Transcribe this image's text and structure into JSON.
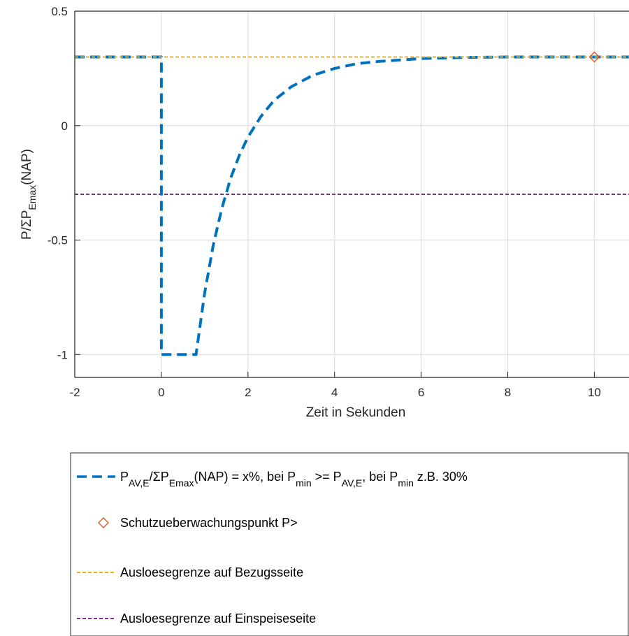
{
  "chart_data": {
    "type": "line",
    "xlabel": "Zeit in Sekunden",
    "ylabel_parts": [
      "P/ΣP",
      "Emax",
      "(NAP)"
    ],
    "xlim": [
      -2,
      10.8
    ],
    "ylim": [
      -1.1,
      0.5
    ],
    "x_ticks": [
      -2,
      0,
      2,
      4,
      6,
      8,
      10
    ],
    "y_ticks": [
      0.5,
      0,
      -0.5,
      -1
    ],
    "x_tick_labels": [
      "-2",
      "0",
      "2",
      "4",
      "6",
      "8",
      "10"
    ],
    "y_tick_labels": [
      "0.5",
      "0",
      "-0.5",
      "-1"
    ],
    "grid": true,
    "legend_placement": "below",
    "series": [
      {
        "style": "dashed",
        "color": "#0072BD",
        "x": [
          -2,
          0,
          0,
          0.8,
          1.0,
          1.2,
          1.4,
          1.6,
          1.8,
          2.0,
          2.3,
          2.6,
          3.0,
          3.5,
          4.0,
          4.5,
          5.0,
          6.0,
          7.0,
          8.0,
          9.0,
          10.0,
          10.8
        ],
        "y": [
          0.3,
          0.3,
          -1.0,
          -1.0,
          -0.73,
          -0.52,
          -0.36,
          -0.23,
          -0.13,
          -0.05,
          0.04,
          0.11,
          0.17,
          0.22,
          0.25,
          0.27,
          0.28,
          0.293,
          0.298,
          0.3,
          0.3,
          0.3,
          0.3
        ]
      },
      {
        "style": "marker",
        "color": "#D95319",
        "x": [
          10
        ],
        "y": [
          0.3
        ]
      },
      {
        "style": "dotted",
        "color": "#EDB120",
        "x": [
          -2,
          10.8
        ],
        "y": [
          0.3,
          0.3
        ]
      },
      {
        "style": "dotted",
        "color": "#7E2F8E",
        "x": [
          -2,
          10.8
        ],
        "y": [
          -0.3,
          -0.3
        ]
      }
    ],
    "legend": {
      "entry1_parts": [
        "P",
        "AV,E",
        "/ΣP",
        "Emax",
        "(NAP) = x%, bei P",
        "min",
        " >= P",
        "AV,E",
        ", bei P",
        "min",
        " z.B. 30%"
      ],
      "entry2": "Schutzueberwachungspunkt P>",
      "entry3": "Ausloesegrenze auf Bezugsseite",
      "entry4": "Ausloesegrenze auf Einspeiseseite"
    }
  }
}
